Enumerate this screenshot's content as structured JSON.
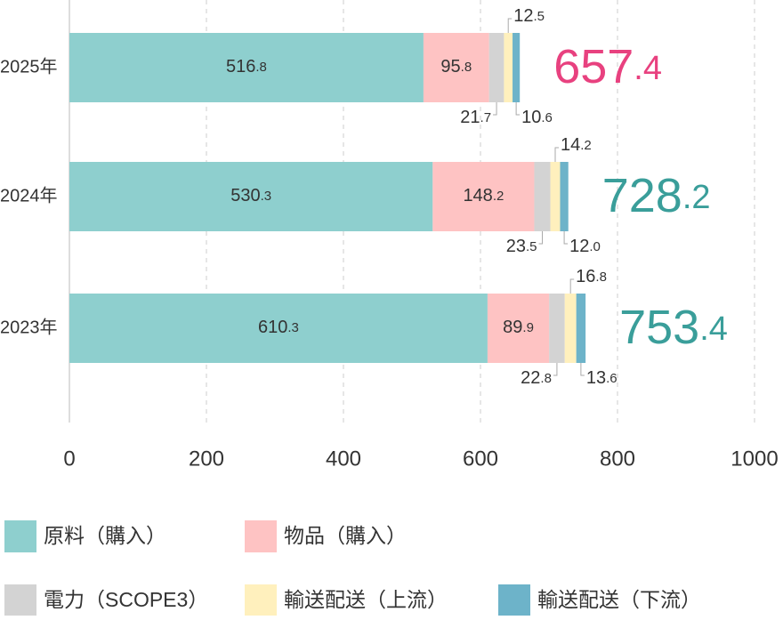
{
  "chart_data": {
    "type": "stacked-bar-horizontal",
    "categories": [
      "2025年",
      "2024年",
      "2023年"
    ],
    "series": [
      {
        "name": "原料（購入）",
        "color": "#8ecfce",
        "values": [
          516.8,
          530.3,
          610.3
        ]
      },
      {
        "name": "物品（購入）",
        "color": "#fec3c3",
        "values": [
          95.8,
          148.2,
          89.9
        ]
      },
      {
        "name": "電力（SCOPE3）",
        "color": "#d3d3d3",
        "values": [
          21.7,
          23.5,
          22.8
        ]
      },
      {
        "name": "輸送配送（上流）",
        "color": "#fff0bd",
        "values": [
          12.5,
          14.2,
          16.8
        ]
      },
      {
        "name": "輸送配送（下流）",
        "color": "#6db3c9",
        "values": [
          10.6,
          12.0,
          13.6
        ],
        "value_labels": [
          "10.6",
          "12.0",
          "13.6"
        ]
      }
    ],
    "totals": [
      657.4,
      728.2,
      753.4
    ],
    "total_colors": [
      "#e8417f",
      "#3a9e9a",
      "#3a9e9a"
    ],
    "xlim": [
      0,
      1000
    ],
    "xticks": [
      0,
      200,
      400,
      600,
      800,
      1000
    ],
    "grid": true
  }
}
